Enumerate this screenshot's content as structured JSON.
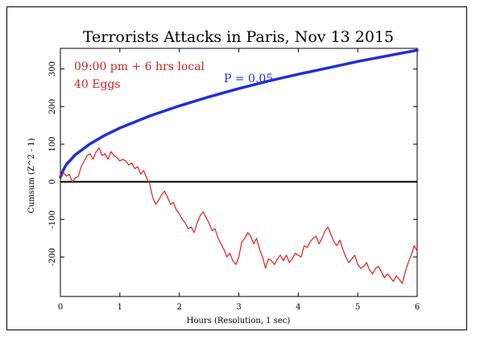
{
  "chart_data": {
    "type": "line",
    "title": "Terrorists Attacks in Paris, Nov 13 2015",
    "xlabel": "Hours (Resolution, 1 sec)",
    "ylabel": "Cumsum (Z^2 - 1)",
    "xlim": [
      0,
      6
    ],
    "ylim": [
      -305,
      355
    ],
    "x_ticks": [
      "0",
      "1",
      "2",
      "3",
      "4",
      "5",
      "6"
    ],
    "x_tick_values": [
      0,
      1,
      2,
      3,
      4,
      5,
      6
    ],
    "y_ticks": [
      "-200",
      "-100",
      "0",
      "100",
      "200",
      "300"
    ],
    "y_tick_values": [
      -200,
      -100,
      0,
      100,
      200,
      300
    ],
    "annotations": {
      "time": "09:00 pm + 6 hrs local",
      "eggs": "40 Eggs",
      "probability": "P = 0.05"
    },
    "colors": {
      "cumsum": "#e41a1c",
      "probability": "#1f2fd6",
      "zero": "#000000",
      "time_text": "#d42020",
      "prob_text": "#1f2fd6"
    },
    "series": [
      {
        "role": "probability-envelope",
        "x": [
          0,
          0.05,
          0.1,
          0.25,
          0.5,
          0.75,
          1,
          1.5,
          2,
          2.5,
          3,
          3.5,
          4,
          4.5,
          5,
          5.5,
          6
        ],
        "values": [
          12,
          32,
          46,
          72,
          101,
          124,
          143,
          175,
          202,
          226,
          248,
          268,
          286,
          303,
          320,
          335,
          350
        ]
      },
      {
        "role": "cumulative-deviation",
        "x": [
          0,
          0.05,
          0.1,
          0.15,
          0.2,
          0.25,
          0.3,
          0.35,
          0.4,
          0.45,
          0.5,
          0.55,
          0.6,
          0.65,
          0.7,
          0.75,
          0.8,
          0.85,
          0.9,
          0.95,
          1.0,
          1.05,
          1.1,
          1.15,
          1.2,
          1.25,
          1.3,
          1.35,
          1.4,
          1.45,
          1.5,
          1.55,
          1.6,
          1.65,
          1.7,
          1.75,
          1.8,
          1.85,
          1.9,
          1.95,
          2.0,
          2.05,
          2.1,
          2.15,
          2.2,
          2.25,
          2.3,
          2.35,
          2.4,
          2.45,
          2.5,
          2.55,
          2.6,
          2.65,
          2.7,
          2.75,
          2.8,
          2.85,
          2.9,
          2.95,
          3.0,
          3.05,
          3.1,
          3.15,
          3.2,
          3.25,
          3.3,
          3.35,
          3.4,
          3.45,
          3.5,
          3.55,
          3.6,
          3.65,
          3.7,
          3.75,
          3.8,
          3.85,
          3.9,
          3.95,
          4.0,
          4.05,
          4.1,
          4.15,
          4.2,
          4.25,
          4.3,
          4.35,
          4.4,
          4.45,
          4.5,
          4.55,
          4.6,
          4.65,
          4.7,
          4.75,
          4.8,
          4.85,
          4.9,
          4.95,
          5.0,
          5.05,
          5.1,
          5.15,
          5.2,
          5.25,
          5.3,
          5.35,
          5.4,
          5.45,
          5.5,
          5.55,
          5.6,
          5.65,
          5.7,
          5.75,
          5.8,
          5.85,
          5.9,
          5.95,
          6.0
        ],
        "values": [
          5,
          25,
          15,
          20,
          0,
          10,
          15,
          40,
          55,
          70,
          75,
          60,
          80,
          90,
          70,
          75,
          60,
          80,
          70,
          65,
          55,
          60,
          55,
          45,
          50,
          35,
          40,
          20,
          30,
          10,
          -5,
          -40,
          -60,
          -50,
          -35,
          -25,
          -40,
          -60,
          -55,
          -75,
          -85,
          -100,
          -110,
          -125,
          -120,
          -135,
          -110,
          -90,
          -80,
          -95,
          -110,
          -130,
          -125,
          -150,
          -165,
          -180,
          -200,
          -190,
          -210,
          -220,
          -200,
          -160,
          -150,
          -135,
          -145,
          -165,
          -150,
          -180,
          -200,
          -230,
          -205,
          -210,
          -220,
          -205,
          -195,
          -210,
          -195,
          -215,
          -205,
          -190,
          -195,
          -200,
          -170,
          -175,
          -160,
          -150,
          -145,
          -165,
          -150,
          -130,
          -120,
          -140,
          -160,
          -170,
          -155,
          -180,
          -200,
          -215,
          -205,
          -195,
          -220,
          -230,
          -225,
          -215,
          -235,
          -245,
          -230,
          -225,
          -240,
          -255,
          -245,
          -255,
          -265,
          -250,
          -260,
          -270,
          -240,
          -215,
          -195,
          -170,
          -185
        ]
      }
    ]
  }
}
